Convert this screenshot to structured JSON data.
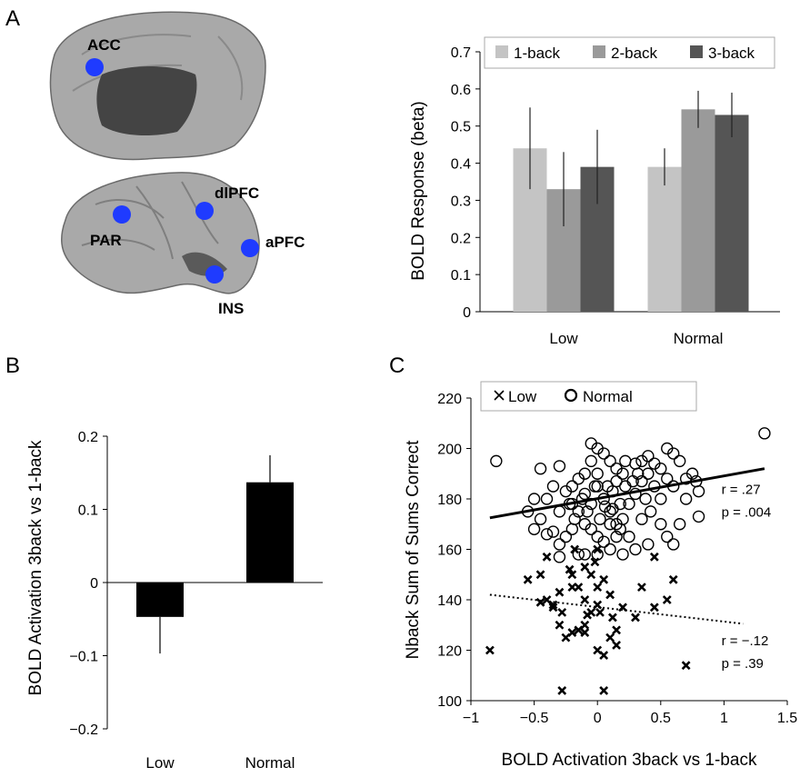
{
  "panel_letters": {
    "a": "A",
    "b": "B",
    "c": "C"
  },
  "brain": {
    "medial_labels": [
      "ACC"
    ],
    "lateral_labels": [
      "dlPFC",
      "PAR",
      "aPFC",
      "INS"
    ],
    "roi_color": "#1f3bff"
  },
  "chart_data": [
    {
      "id": "A",
      "type": "bar",
      "ylabel": "BOLD Response (beta)",
      "xlabel": "",
      "categories": [
        "Low",
        "Normal"
      ],
      "ylim": [
        0,
        0.7
      ],
      "yticks": [
        "0",
        "0.1",
        "0.2",
        "0.3",
        "0.4",
        "0.5",
        "0.6",
        "0.7"
      ],
      "legend_position": "top",
      "series": [
        {
          "name": "1-back",
          "color": "#c4c4c4",
          "values": [
            0.44,
            0.39
          ],
          "errors": [
            0.11,
            0.05
          ]
        },
        {
          "name": "2-back",
          "color": "#9a9a9a",
          "values": [
            0.33,
            0.545
          ],
          "errors": [
            0.1,
            0.05
          ]
        },
        {
          "name": "3-back",
          "color": "#555555",
          "values": [
            0.39,
            0.53
          ],
          "errors": [
            0.1,
            0.06
          ]
        }
      ]
    },
    {
      "id": "B",
      "type": "bar",
      "ylabel": "BOLD Activation 3back vs 1-back",
      "xlabel": "",
      "categories": [
        "Low",
        "Normal"
      ],
      "values": [
        -0.047,
        0.137
      ],
      "errors": [
        0.05,
        0.037
      ],
      "ylim": [
        -0.2,
        0.2
      ],
      "yticks": [
        "−0.2",
        "−0.1",
        "0",
        "0.1",
        "0.2"
      ],
      "color": "#000000"
    },
    {
      "id": "C",
      "type": "scatter",
      "xlabel": "BOLD Activation 3back vs 1-back",
      "ylabel": "Nback Sum of Sums Correct",
      "xlim": [
        -1,
        1.5
      ],
      "ylim": [
        100,
        220
      ],
      "xticks": [
        "−1",
        "−0.5",
        "0",
        "0.5",
        "1",
        "1.5"
      ],
      "yticks": [
        "100",
        "120",
        "140",
        "160",
        "180",
        "200",
        "220"
      ],
      "legend_position": "top-left",
      "series": [
        {
          "name": "Low",
          "marker": "x",
          "points": [
            [
              -0.85,
              120
            ],
            [
              -0.4,
              157
            ],
            [
              -0.55,
              148
            ],
            [
              -0.45,
              150
            ],
            [
              -0.3,
              143
            ],
            [
              -0.35,
              138
            ],
            [
              -0.2,
              145
            ],
            [
              -0.22,
              152
            ],
            [
              -0.1,
              153
            ],
            [
              -0.05,
              150
            ],
            [
              0.0,
              145
            ],
            [
              0.05,
              148
            ],
            [
              0.1,
              142
            ],
            [
              0.12,
              133
            ],
            [
              0.2,
              137
            ],
            [
              0.0,
              138
            ],
            [
              -0.05,
              135
            ],
            [
              -0.1,
              130
            ],
            [
              -0.15,
              128
            ],
            [
              -0.2,
              127
            ],
            [
              -0.25,
              125
            ],
            [
              -0.28,
              135
            ],
            [
              -0.3,
              130
            ],
            [
              -0.35,
              137
            ],
            [
              -0.4,
              140
            ],
            [
              -0.45,
              139
            ],
            [
              -0.18,
              160
            ],
            [
              0.0,
              120
            ],
            [
              0.05,
              118
            ],
            [
              0.1,
              125
            ],
            [
              0.15,
              122
            ],
            [
              -0.1,
              127
            ],
            [
              -0.08,
              134
            ],
            [
              0.02,
              135
            ],
            [
              0.3,
              133
            ],
            [
              0.35,
              145
            ],
            [
              0.45,
              137
            ],
            [
              0.55,
              140
            ],
            [
              0.6,
              148
            ],
            [
              0.45,
              157
            ],
            [
              0.7,
              114
            ],
            [
              -0.28,
              104
            ],
            [
              0.05,
              104
            ],
            [
              -0.1,
              140
            ],
            [
              0.0,
              160
            ],
            [
              -0.02,
              155
            ],
            [
              0.15,
              128
            ],
            [
              -0.2,
              150
            ],
            [
              -0.15,
              145
            ]
          ]
        },
        {
          "name": "Normal",
          "marker": "o",
          "points": [
            [
              -0.8,
              195
            ],
            [
              -0.5,
              180
            ],
            [
              -0.55,
              175
            ],
            [
              -0.45,
              172
            ],
            [
              -0.4,
              180
            ],
            [
              -0.35,
              185
            ],
            [
              -0.3,
              175
            ],
            [
              -0.2,
              178
            ],
            [
              -0.1,
              182
            ],
            [
              0.0,
              185
            ],
            [
              0.05,
              180
            ],
            [
              0.1,
              175
            ],
            [
              0.15,
              170
            ],
            [
              0.2,
              172
            ],
            [
              0.25,
              178
            ],
            [
              0.3,
              182
            ],
            [
              0.35,
              187
            ],
            [
              0.4,
              190
            ],
            [
              0.45,
              185
            ],
            [
              0.5,
              180
            ],
            [
              0.55,
              188
            ],
            [
              0.6,
              185
            ],
            [
              0.65,
              195
            ],
            [
              0.7,
              180
            ],
            [
              0.75,
              190
            ],
            [
              0.8,
              183
            ],
            [
              0.8,
              173
            ],
            [
              0.55,
              200
            ],
            [
              0.6,
              198
            ],
            [
              0.45,
              194
            ],
            [
              0.4,
              197
            ],
            [
              0.35,
              195
            ],
            [
              0.3,
              194
            ],
            [
              0.2,
              190
            ],
            [
              0.15,
              192
            ],
            [
              0.1,
              195
            ],
            [
              0.0,
              200
            ],
            [
              -0.05,
              202
            ],
            [
              -0.1,
              190
            ],
            [
              -0.15,
              188
            ],
            [
              -0.2,
              185
            ],
            [
              -0.25,
              183
            ],
            [
              -0.3,
              193
            ],
            [
              -0.45,
              192
            ],
            [
              -0.5,
              168
            ],
            [
              -0.4,
              166
            ],
            [
              -0.3,
              162
            ],
            [
              -0.25,
              165
            ],
            [
              -0.2,
              168
            ],
            [
              -0.15,
              175
            ],
            [
              -0.1,
              170
            ],
            [
              -0.05,
              168
            ],
            [
              0.0,
              165
            ],
            [
              0.05,
              163
            ],
            [
              0.1,
              160
            ],
            [
              0.15,
              165
            ],
            [
              0.2,
              158
            ],
            [
              0.3,
              160
            ],
            [
              0.4,
              162
            ],
            [
              0.55,
              165
            ],
            [
              0.6,
              162
            ],
            [
              0.65,
              170
            ],
            [
              -0.05,
              178
            ],
            [
              0.0,
              190
            ],
            [
              0.02,
              172
            ],
            [
              0.08,
              185
            ],
            [
              0.12,
              183
            ],
            [
              0.18,
              178
            ],
            [
              0.22,
              185
            ],
            [
              0.28,
              187
            ],
            [
              0.32,
              190
            ],
            [
              0.38,
              180
            ],
            [
              0.42,
              175
            ],
            [
              -0.12,
              180
            ],
            [
              -0.08,
              175
            ],
            [
              -0.18,
              172
            ],
            [
              -0.22,
              178
            ],
            [
              -0.3,
              157
            ],
            [
              -0.15,
              158
            ],
            [
              0.0,
              158
            ],
            [
              0.1,
              170
            ],
            [
              0.25,
              165
            ],
            [
              1.32,
              206
            ],
            [
              0.78,
              187
            ],
            [
              0.7,
              188
            ],
            [
              0.5,
              192
            ],
            [
              -0.05,
              195
            ],
            [
              0.05,
              198
            ],
            [
              0.15,
              187
            ],
            [
              -0.35,
              167
            ],
            [
              -0.02,
              185
            ],
            [
              0.06,
              177
            ],
            [
              0.12,
              176
            ],
            [
              0.18,
              168
            ],
            [
              0.22,
              195
            ],
            [
              -0.1,
              158
            ],
            [
              0.35,
              172
            ],
            [
              0.5,
              170
            ]
          ]
        }
      ],
      "fit_lines": [
        {
          "series": "Normal",
          "style": "solid",
          "x": [
            -0.85,
            1.32
          ],
          "y": [
            172.5,
            192
          ]
        },
        {
          "series": "Low",
          "style": "dotted",
          "x": [
            -0.85,
            1.15
          ],
          "y": [
            142,
            130.5
          ]
        }
      ],
      "annotations": [
        {
          "text": "r = .27",
          "x": 0.98,
          "y": 182
        },
        {
          "text": "p = .004",
          "x": 0.98,
          "y": 173
        },
        {
          "text": "r = −.12",
          "x": 0.98,
          "y": 122
        },
        {
          "text": "p = .39",
          "x": 0.98,
          "y": 113
        }
      ]
    }
  ]
}
